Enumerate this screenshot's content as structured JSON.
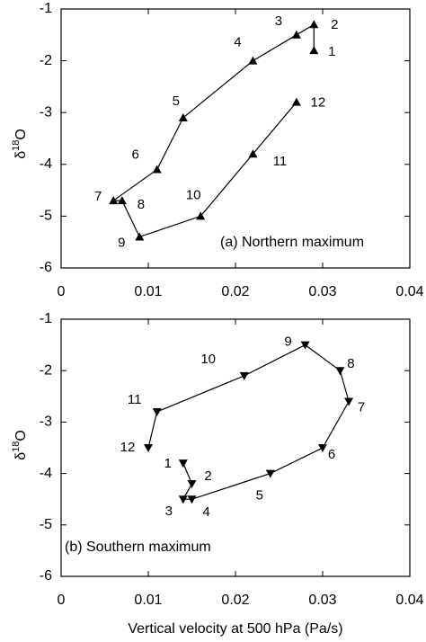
{
  "chart_data": [
    {
      "type": "line",
      "annotation": "(a) Northern maximum",
      "ylabel_parts": [
        "δ",
        "18",
        "O"
      ],
      "xlim": [
        0,
        0.04
      ],
      "xticks": [
        0,
        0.01,
        0.02,
        0.03,
        0.04
      ],
      "ylim": [
        -6,
        -1
      ],
      "yticks": [
        -1,
        -2,
        -3,
        -4,
        -5,
        -6
      ],
      "marker": "triangle-up",
      "color": "#000000",
      "series": [
        {
          "point_labels": [
            "1",
            "2",
            "3",
            "4",
            "5",
            "6",
            "7",
            "8",
            "9",
            "10",
            "11",
            "12"
          ],
          "x": [
            0.029,
            0.029,
            0.027,
            0.022,
            0.014,
            0.011,
            0.006,
            0.007,
            0.009,
            0.016,
            0.022,
            0.027
          ],
          "values": [
            -1.8,
            -1.3,
            -1.5,
            -2.0,
            -3.1,
            -4.1,
            -4.7,
            -4.7,
            -5.4,
            -5.0,
            -3.8,
            -2.8
          ]
        }
      ]
    },
    {
      "type": "line",
      "annotation": "(b) Southern maximum",
      "ylabel_parts": [
        "δ",
        "18",
        "O"
      ],
      "xlabel": "Vertical velocity at 500 hPa (Pa/s)",
      "xlim": [
        0,
        0.04
      ],
      "xticks": [
        0,
        0.01,
        0.02,
        0.03,
        0.04
      ],
      "ylim": [
        -6,
        -1
      ],
      "yticks": [
        -1,
        -2,
        -3,
        -4,
        -5,
        -6
      ],
      "marker": "triangle-down",
      "color": "#000000",
      "series": [
        {
          "point_labels": [
            "1",
            "2",
            "3",
            "4",
            "5",
            "6",
            "7",
            "8",
            "9",
            "10",
            "11",
            "12"
          ],
          "x": [
            0.014,
            0.015,
            0.014,
            0.015,
            0.024,
            0.03,
            0.033,
            0.032,
            0.028,
            0.021,
            0.011,
            0.01
          ],
          "values": [
            -3.8,
            -4.2,
            -4.5,
            -4.5,
            -4.0,
            -3.5,
            -2.6,
            -2.0,
            -1.5,
            -2.1,
            -2.8,
            -3.5
          ]
        }
      ]
    }
  ]
}
